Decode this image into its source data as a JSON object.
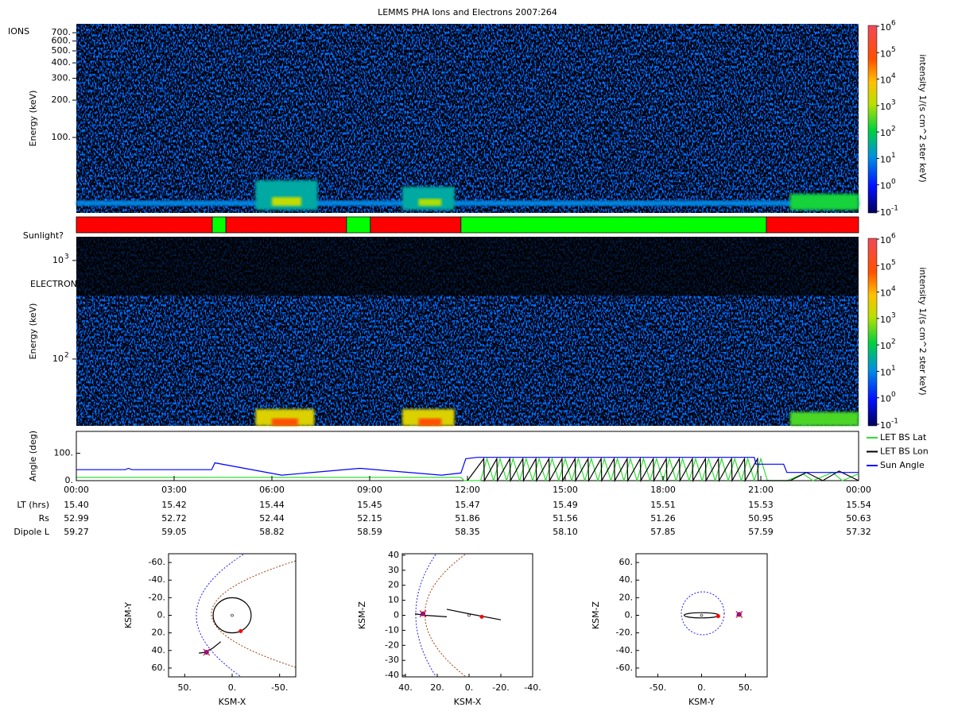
{
  "title": "LEMMS PHA Ions and Electrons  2007:264",
  "time_axis": {
    "xlim": [
      0,
      24
    ],
    "xticks": [
      {
        "value": 0,
        "label": "00:00"
      },
      {
        "value": 3,
        "label": "03:00"
      },
      {
        "value": 6,
        "label": "06:00"
      },
      {
        "value": 9,
        "label": "09:00"
      },
      {
        "value": 12,
        "label": "12:00"
      },
      {
        "value": 15,
        "label": "15:00"
      },
      {
        "value": 18,
        "label": "18:00"
      },
      {
        "value": 21,
        "label": "21:00"
      },
      {
        "value": 24,
        "label": "00:00"
      }
    ]
  },
  "ephemeris": {
    "rows": [
      {
        "label": "LT (hrs)",
        "values": [
          "15.40",
          "15.42",
          "15.44",
          "15.45",
          "15.47",
          "15.49",
          "15.51",
          "15.53",
          "15.54"
        ]
      },
      {
        "label": "Rs",
        "values": [
          "52.99",
          "52.72",
          "52.44",
          "52.15",
          "51.86",
          "51.56",
          "51.26",
          "50.95",
          "50.63"
        ]
      },
      {
        "label": "Dipole L",
        "values": [
          "59.27",
          "59.05",
          "58.82",
          "58.59",
          "58.35",
          "58.10",
          "57.85",
          "57.59",
          "57.32"
        ]
      }
    ]
  },
  "ions": {
    "label": "IONS",
    "ylabel": "Energy (keV)",
    "log": true,
    "ylim": [
      24.6,
      826
    ],
    "yticks": [
      {
        "value": 700,
        "label": "700."
      },
      {
        "value": 600,
        "label": "600."
      },
      {
        "value": 500,
        "label": "500."
      },
      {
        "value": 400,
        "label": "400."
      },
      {
        "value": 300,
        "label": "300."
      },
      {
        "value": 200,
        "label": "200."
      },
      {
        "value": 100,
        "label": "100."
      }
    ],
    "features": [
      {
        "start": 0,
        "end": 24,
        "energy_low": 28,
        "energy_high": 31,
        "intensity": 10
      },
      {
        "start": 5.5,
        "end": 7.4,
        "energy_low": 26,
        "energy_high": 45,
        "intensity": 30
      },
      {
        "start": 6.0,
        "end": 6.9,
        "energy_low": 28,
        "energy_high": 33,
        "intensity": 1500
      },
      {
        "start": 10.0,
        "end": 11.6,
        "energy_low": 26,
        "energy_high": 40,
        "intensity": 30
      },
      {
        "start": 10.5,
        "end": 11.2,
        "energy_low": 28,
        "energy_high": 32,
        "intensity": 1000
      },
      {
        "start": 21.9,
        "end": 24,
        "energy_low": 26,
        "energy_high": 35,
        "intensity": 150
      }
    ]
  },
  "sunlight": {
    "label": "Sunlight?",
    "segments": [
      {
        "start": 0,
        "end": 4.17,
        "color": "#ff0000"
      },
      {
        "start": 4.17,
        "end": 4.59,
        "color": "#00ff00"
      },
      {
        "start": 4.59,
        "end": 8.29,
        "color": "#ff0000"
      },
      {
        "start": 8.29,
        "end": 9.02,
        "color": "#00ff00"
      },
      {
        "start": 9.02,
        "end": 11.8,
        "color": "#ff0000"
      },
      {
        "start": 11.8,
        "end": 21.17,
        "color": "#00ff00"
      },
      {
        "start": 21.17,
        "end": 24,
        "color": "#ff0000"
      }
    ]
  },
  "electrons": {
    "label": "ELECTRONS",
    "ylabel": "Energy (keV)",
    "log": true,
    "ylim": [
      21,
      1740
    ],
    "yticks": [
      {
        "value": 1000,
        "label": "10",
        "exponent": "3"
      },
      {
        "value": 100,
        "label": "10",
        "exponent": "2"
      }
    ],
    "features": [
      {
        "start": 5.5,
        "end": 7.3,
        "energy_low": 21,
        "energy_high": 31,
        "intensity": 3000
      },
      {
        "start": 6.0,
        "end": 6.8,
        "energy_low": 21,
        "energy_high": 25,
        "intensity": 60000
      },
      {
        "start": 10.0,
        "end": 11.6,
        "energy_low": 21,
        "energy_high": 31,
        "intensity": 3000
      },
      {
        "start": 10.5,
        "end": 11.2,
        "energy_low": 21,
        "energy_high": 25,
        "intensity": 60000
      },
      {
        "start": 21.9,
        "end": 24,
        "energy_low": 21,
        "energy_high": 29,
        "intensity": 300
      }
    ]
  },
  "colorbar": {
    "label": "intensity 1/(s cm^2 ster keV)",
    "log": true,
    "lim": [
      0.1,
      1000000
    ],
    "ticks": [
      {
        "value": 0.1,
        "label": "10",
        "exponent": "-1"
      },
      {
        "value": 1,
        "label": "10",
        "exponent": "0"
      },
      {
        "value": 10,
        "label": "10",
        "exponent": "1"
      },
      {
        "value": 100,
        "label": "10",
        "exponent": "2"
      },
      {
        "value": 1000,
        "label": "10",
        "exponent": "3"
      },
      {
        "value": 10000,
        "label": "10",
        "exponent": "4"
      },
      {
        "value": 100000,
        "label": "10",
        "exponent": "5"
      },
      {
        "value": 1000000,
        "label": "10",
        "exponent": "6"
      }
    ]
  },
  "angle": {
    "ylabel": "Angle (deg)",
    "ylim": [
      0,
      180
    ],
    "yticks": [
      {
        "value": 0,
        "label": "0."
      },
      {
        "value": 100,
        "label": "100."
      }
    ],
    "series": [
      {
        "name": "LET BS Lat",
        "color": "#33dd33",
        "x": [
          0,
          11.8,
          11.9,
          12.4,
          12.6,
          12.8,
          13.0,
          13.2,
          13.4,
          13.6,
          13.8,
          14.0,
          14.2,
          14.4,
          14.6,
          14.8,
          15.0,
          15.2,
          15.4,
          15.6,
          15.8,
          16.0,
          16.2,
          16.4,
          16.6,
          16.8,
          17.0,
          17.2,
          17.4,
          17.6,
          17.8,
          18.0,
          18.2,
          18.4,
          18.6,
          18.8,
          19.0,
          19.2,
          19.4,
          19.6,
          19.8,
          20.0,
          20.2,
          20.4,
          20.6,
          20.8,
          21.0,
          21.2,
          21.8,
          22.3,
          22.6,
          23.2,
          23.5,
          24
        ],
        "values": [
          12,
          12,
          0,
          0,
          80,
          0,
          80,
          0,
          80,
          0,
          80,
          0,
          80,
          0,
          80,
          0,
          80,
          0,
          80,
          0,
          80,
          0,
          80,
          0,
          80,
          0,
          80,
          0,
          80,
          0,
          80,
          0,
          80,
          0,
          80,
          0,
          80,
          0,
          80,
          0,
          80,
          0,
          80,
          0,
          80,
          0,
          80,
          0,
          0,
          25,
          0,
          30,
          0,
          25
        ]
      },
      {
        "name": "LET BS Lon",
        "color": "#000000",
        "x": [
          12.0,
          12.5,
          12.52,
          12.9,
          12.92,
          13.3,
          13.32,
          13.7,
          13.72,
          14.1,
          14.12,
          14.5,
          14.52,
          14.9,
          14.92,
          15.3,
          15.32,
          15.7,
          15.72,
          16.1,
          16.12,
          16.5,
          16.52,
          16.9,
          16.92,
          17.3,
          17.32,
          17.7,
          17.72,
          18.1,
          18.12,
          18.5,
          18.52,
          18.9,
          18.92,
          19.3,
          19.32,
          19.7,
          19.72,
          20.1,
          20.12,
          20.5,
          20.52,
          20.9,
          20.92,
          21.9,
          22.4,
          22.9,
          23.4,
          24
        ],
        "values": [
          0,
          80,
          0,
          80,
          0,
          80,
          0,
          80,
          0,
          80,
          0,
          80,
          0,
          80,
          0,
          80,
          0,
          80,
          0,
          80,
          0,
          80,
          0,
          80,
          0,
          80,
          0,
          80,
          0,
          80,
          0,
          80,
          0,
          80,
          0,
          80,
          0,
          80,
          0,
          80,
          0,
          80,
          0,
          80,
          0,
          0,
          30,
          0,
          35,
          0
        ]
      },
      {
        "name": "Sun Angle",
        "color": "#0000ff",
        "x": [
          0,
          1.5,
          1.6,
          1.7,
          4.15,
          4.25,
          6.3,
          8.7,
          11.2,
          11.8,
          11.95,
          12.3,
          20.8,
          20.85,
          21.7,
          21.8,
          24
        ],
        "values": [
          40,
          40,
          45,
          40,
          40,
          65,
          20,
          45,
          20,
          28,
          80,
          85,
          85,
          60,
          60,
          30,
          30
        ]
      }
    ]
  },
  "orbits": [
    {
      "xlabel": "KSM-X",
      "ylabel": "KSM-Y",
      "xlim": [
        67,
        -67
      ],
      "ylim": [
        70,
        -70
      ],
      "xticks": [
        {
          "value": 50,
          "label": "50."
        },
        {
          "value": 0,
          "label": "0."
        },
        {
          "value": -50,
          "label": "-50."
        }
      ],
      "yticks": [
        {
          "value": -60,
          "label": "-60."
        },
        {
          "value": -40,
          "label": "-40."
        },
        {
          "value": -20,
          "label": "-20."
        },
        {
          "value": 0,
          "label": "0."
        },
        {
          "value": 20,
          "label": "20."
        },
        {
          "value": 40,
          "label": "40."
        },
        {
          "value": 60,
          "label": "60."
        }
      ],
      "ring": {
        "cx": 0,
        "cy": 0,
        "rx": 20,
        "ry": 20
      },
      "trajectory": {
        "x": [
          35,
          28,
          20,
          12
        ],
        "y": [
          43,
          42,
          37,
          30
        ]
      },
      "position": {
        "x": -9,
        "y": 18
      },
      "spacecraft": {
        "x": 27,
        "y": 42
      }
    },
    {
      "xlabel": "KSM-X",
      "ylabel": "KSM-Z",
      "xlim": [
        42,
        -40
      ],
      "ylim": [
        -41,
        41
      ],
      "xticks": [
        {
          "value": 40,
          "label": "40."
        },
        {
          "value": 20,
          "label": "20."
        },
        {
          "value": 0,
          "label": "0."
        },
        {
          "value": -20,
          "label": "-20."
        },
        {
          "value": -40,
          "label": "-40."
        }
      ],
      "yticks": [
        40,
        30,
        20,
        10,
        0,
        -10,
        -20,
        -30,
        -40
      ],
      "ring": {
        "x": [
          14,
          0,
          -20
        ],
        "y": [
          4,
          1,
          -3
        ]
      },
      "trajectory": {
        "x": [
          34,
          28,
          14
        ],
        "y": [
          1,
          0,
          -1
        ]
      },
      "position": {
        "x": -8,
        "y": -1
      },
      "spacecraft": {
        "x": 29,
        "y": 1
      }
    },
    {
      "xlabel": "KSM-Y",
      "ylabel": "KSM-Z",
      "xlim": [
        -75,
        75
      ],
      "ylim": [
        -70,
        70
      ],
      "xticks": [
        {
          "value": -50,
          "label": "-50."
        },
        {
          "value": 0,
          "label": "0."
        },
        {
          "value": 50,
          "label": "50."
        }
      ],
      "yticks": [
        {
          "value": 60,
          "label": "60."
        },
        {
          "value": 40,
          "label": "40."
        },
        {
          "value": 20,
          "label": "20."
        },
        {
          "value": 0,
          "label": "0."
        },
        {
          "value": -20,
          "label": "-20."
        },
        {
          "value": -40,
          "label": "-40."
        },
        {
          "value": -60,
          "label": "-60."
        }
      ],
      "ring": {
        "cx": 0,
        "cy": 0,
        "rx": 20,
        "ry": 3
      },
      "trajectory": {
        "x": [
          40,
          44
        ],
        "y": [
          0,
          1
        ]
      },
      "position": {
        "x": 19,
        "y": -1
      },
      "spacecraft": {
        "x": 43,
        "y": 1
      }
    }
  ]
}
